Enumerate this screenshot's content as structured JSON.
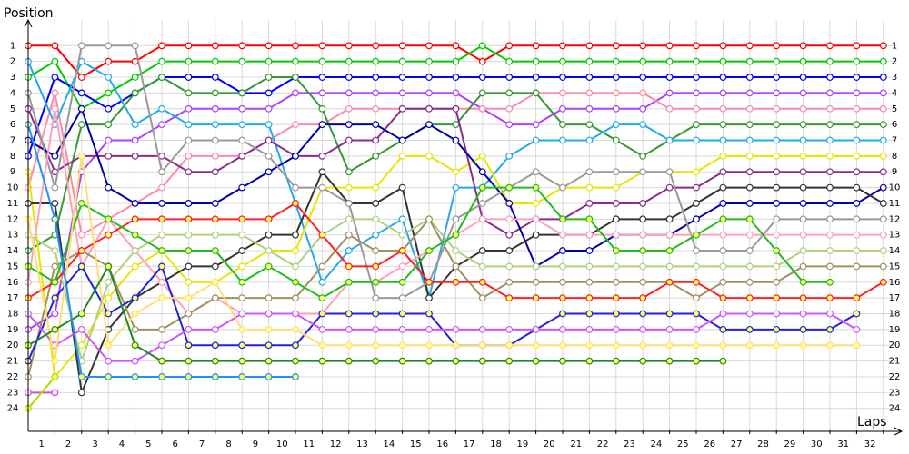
{
  "chart_data": {
    "type": "line",
    "x_label": "Laps",
    "y_label": "Position",
    "x": [
      0,
      1,
      2,
      3,
      4,
      5,
      6,
      7,
      8,
      9,
      10,
      11,
      12,
      13,
      14,
      15,
      16,
      17,
      18,
      19,
      20,
      21,
      22,
      23,
      24,
      25,
      26,
      27,
      28,
      29,
      30,
      31,
      32
    ],
    "xlim": [
      0,
      32.5
    ],
    "ylim": [
      -0.4,
      25.4
    ],
    "y_inverted": true,
    "grid": true,
    "xticks": [
      1,
      2,
      3,
      4,
      5,
      6,
      7,
      8,
      9,
      10,
      11,
      12,
      13,
      14,
      15,
      16,
      17,
      18,
      19,
      20,
      21,
      22,
      23,
      24,
      25,
      26,
      27,
      28,
      29,
      30,
      31,
      32
    ],
    "yticks": [
      1,
      2,
      3,
      4,
      5,
      6,
      7,
      8,
      9,
      10,
      11,
      12,
      13,
      14,
      15,
      16,
      17,
      18,
      19,
      20,
      21,
      22,
      23,
      24
    ],
    "series": [
      {
        "color": "#ff0000",
        "marker_fill": "#ffffff",
        "values": [
          1,
          1,
          3,
          2,
          2,
          1,
          1,
          1,
          1,
          1,
          1,
          1,
          1,
          1,
          1,
          1,
          1,
          2,
          1,
          1,
          1,
          1,
          1,
          1,
          1,
          1,
          1,
          1,
          1,
          1,
          1,
          1,
          1
        ]
      },
      {
        "color": "#00cc00",
        "marker_fill": "#ffffff",
        "values": [
          3,
          2,
          5,
          4,
          3,
          2,
          2,
          2,
          2,
          2,
          2,
          2,
          2,
          2,
          2,
          2,
          2,
          1,
          2,
          2,
          2,
          2,
          2,
          2,
          2,
          2,
          2,
          2,
          2,
          2,
          2,
          2,
          2
        ]
      },
      {
        "color": "#0000ff",
        "marker_fill": "#ffffff",
        "values": [
          8,
          3,
          4,
          5,
          4,
          3,
          3,
          3,
          4,
          4,
          3,
          3,
          3,
          3,
          3,
          3,
          3,
          3,
          3,
          3,
          3,
          3,
          3,
          3,
          3,
          3,
          3,
          3,
          3,
          3,
          3,
          3,
          3
        ]
      },
      {
        "color": "#b040ff",
        "marker_fill": "#ffffff",
        "values": [
          19,
          18,
          9,
          7,
          7,
          6,
          5,
          5,
          5,
          5,
          4,
          4,
          4,
          4,
          4,
          4,
          4,
          5,
          6,
          6,
          5,
          5,
          5,
          5,
          4,
          4,
          4,
          4,
          4,
          4,
          4,
          4,
          4
        ]
      },
      {
        "color": "#ff88aa",
        "marker_fill": "#ffffff",
        "values": [
          10,
          4,
          13,
          12,
          11,
          10,
          8,
          8,
          8,
          7,
          6,
          6,
          5,
          5,
          5,
          5,
          5,
          5,
          5,
          4,
          4,
          4,
          4,
          4,
          5,
          5,
          5,
          5,
          5,
          5,
          5,
          5,
          5
        ]
      },
      {
        "color": "#339933",
        "marker_fill": "#ffffff",
        "values": [
          14,
          13,
          6,
          6,
          4,
          3,
          4,
          4,
          4,
          3,
          3,
          5,
          9,
          8,
          7,
          6,
          6,
          4,
          4,
          4,
          6,
          6,
          7,
          8,
          7,
          6,
          6,
          6,
          6,
          6,
          6,
          6,
          6
        ]
      },
      {
        "color": "#22aaee",
        "marker_fill": "#ffffff",
        "values": [
          2,
          6,
          2,
          3,
          6,
          5,
          6,
          6,
          6,
          6,
          11,
          16,
          14,
          13,
          12,
          17,
          10,
          10,
          8,
          7,
          7,
          7,
          6,
          6,
          7,
          7,
          7,
          7,
          7,
          7,
          7,
          7,
          7
        ]
      },
      {
        "color": "#e6e600",
        "marker_fill": "#ffffff",
        "values": [
          9,
          22,
          20,
          17,
          15,
          14,
          16,
          16,
          15,
          14,
          14,
          10,
          10,
          10,
          8,
          8,
          9,
          8,
          11,
          11,
          10,
          10,
          10,
          9,
          9,
          9,
          8,
          8,
          8,
          8,
          8,
          8,
          8
        ]
      },
      {
        "color": "#8b2c8b",
        "marker_fill": "#ffffff",
        "values": [
          5,
          9,
          8,
          8,
          8,
          8,
          9,
          9,
          8,
          7,
          8,
          8,
          7,
          7,
          5,
          5,
          5,
          12,
          13,
          12,
          12,
          11,
          11,
          11,
          10,
          10,
          9,
          9,
          9,
          9,
          9,
          9,
          9
        ]
      },
      {
        "color": "#0000aa",
        "marker_fill": "#ffffff",
        "values": [
          7,
          8,
          5,
          10,
          11,
          11,
          11,
          11,
          10,
          9,
          8,
          6,
          6,
          6,
          7,
          6,
          7,
          9,
          11,
          15,
          14,
          14,
          13,
          13,
          13,
          12,
          11,
          11,
          11,
          11,
          11,
          11,
          10
        ]
      },
      {
        "color": "#333333",
        "marker_fill": "#ffffff",
        "values": [
          11,
          11,
          23,
          19,
          17,
          16,
          15,
          15,
          14,
          13,
          13,
          9,
          11,
          11,
          10,
          17,
          15,
          14,
          14,
          13,
          13,
          13,
          12,
          12,
          12,
          11,
          10,
          10,
          10,
          10,
          10,
          10,
          11
        ]
      },
      {
        "color": "#999999",
        "marker_fill": "#ffffff",
        "values": [
          4,
          10,
          1,
          1,
          1,
          9,
          7,
          7,
          7,
          8,
          10,
          10,
          11,
          17,
          17,
          16,
          12,
          11,
          10,
          9,
          10,
          9,
          9,
          9,
          9,
          14,
          14,
          14,
          12,
          12,
          12,
          12,
          12
        ]
      },
      {
        "color": "#ffa0b8",
        "marker_fill": "#ffffff",
        "values": [
          16,
          5,
          15,
          12,
          14,
          16,
          18,
          17,
          18,
          18,
          18,
          18,
          16,
          16,
          15,
          14,
          13,
          12,
          12,
          12,
          13,
          13,
          13,
          13,
          13,
          13,
          13,
          13,
          13,
          13,
          13,
          13,
          13
        ]
      },
      {
        "color": "#b0d080",
        "marker_fill": "#ffffff",
        "values": [
          13,
          14,
          21,
          16,
          14,
          13,
          13,
          13,
          13,
          14,
          15,
          13,
          12,
          12,
          13,
          12,
          14,
          15,
          15,
          15,
          15,
          15,
          15,
          15,
          15,
          15,
          15,
          15,
          15,
          14,
          14,
          14,
          14
        ]
      },
      {
        "color": "#a09060",
        "marker_fill": "#ffffff",
        "values": [
          22,
          15,
          14,
          15,
          19,
          19,
          18,
          17,
          17,
          17,
          17,
          15,
          13,
          14,
          14,
          12,
          15,
          17,
          16,
          16,
          16,
          16,
          16,
          16,
          16,
          17,
          16,
          16,
          16,
          15,
          15,
          15,
          15
        ]
      },
      {
        "color": "#ff2222",
        "marker_fill": "#ffff66",
        "values": [
          17,
          16,
          14,
          13,
          12,
          12,
          12,
          12,
          12,
          12,
          11,
          13,
          15,
          15,
          14,
          16,
          16,
          16,
          17,
          17,
          17,
          17,
          17,
          17,
          16,
          16,
          17,
          17,
          17,
          17,
          17,
          17,
          16
        ]
      },
      {
        "color": "#22bb22",
        "marker_fill": "#ffff66",
        "values": [
          15,
          16,
          11,
          12,
          13,
          14,
          14,
          14,
          16,
          15,
          16,
          17,
          16,
          16,
          16,
          14,
          13,
          10,
          10,
          10,
          12,
          12,
          14,
          14,
          14,
          13,
          12,
          12,
          14,
          16,
          16,
          null,
          null
        ]
      },
      {
        "color": "#2222dd",
        "marker_fill": "#ffff66",
        "values": [
          21,
          17,
          15,
          18,
          17,
          15,
          20,
          20,
          20,
          20,
          20,
          18,
          18,
          18,
          18,
          18,
          20,
          20,
          20,
          19,
          18,
          18,
          18,
          18,
          18,
          18,
          19,
          19,
          19,
          19,
          19,
          18,
          null
        ]
      },
      {
        "color": "#cc55ff",
        "marker_fill": "#ffffff",
        "values": [
          18,
          20,
          19,
          21,
          21,
          20,
          19,
          19,
          18,
          18,
          18,
          19,
          19,
          19,
          19,
          19,
          19,
          19,
          19,
          19,
          19,
          19,
          19,
          19,
          19,
          19,
          18,
          18,
          18,
          18,
          18,
          19,
          null
        ]
      },
      {
        "color": "#ffdd77",
        "marker_fill": "#ffff99",
        "values": [
          12,
          21,
          8,
          20,
          18,
          17,
          17,
          16,
          19,
          19,
          19,
          20,
          20,
          20,
          20,
          20,
          20,
          20,
          20,
          20,
          20,
          20,
          20,
          20,
          20,
          20,
          20,
          20,
          20,
          20,
          20,
          20,
          null
        ]
      },
      {
        "color": "#228822",
        "marker_fill": "#ffff66",
        "values": [
          20,
          19,
          18,
          15,
          20,
          21,
          21,
          21,
          21,
          21,
          21,
          21,
          21,
          21,
          21,
          21,
          21,
          21,
          21,
          21,
          21,
          21,
          21,
          21,
          21,
          21,
          21,
          null,
          null,
          null,
          null,
          null,
          null
        ]
      },
      {
        "color": "#1e90ff",
        "marker_fill": "#ffff66",
        "values": [
          6,
          12,
          22,
          22,
          22,
          22,
          22,
          22,
          22,
          22,
          22,
          null,
          null,
          null,
          null,
          null,
          null,
          null,
          null,
          null,
          null,
          null,
          null,
          null,
          null,
          null,
          null,
          null,
          null,
          null,
          null,
          null,
          null
        ]
      },
      {
        "color": "#dd44dd",
        "marker_fill": "#ffffff",
        "values": [
          23,
          23,
          null,
          null,
          null,
          null,
          null,
          null,
          null,
          null,
          null,
          null,
          null,
          null,
          null,
          null,
          null,
          null,
          null,
          null,
          null,
          null,
          null,
          null,
          null,
          null,
          null,
          null,
          null,
          null,
          null,
          null,
          null
        ]
      },
      {
        "color": "#aadd00",
        "marker_fill": "#ffff66",
        "values": [
          24,
          22,
          null,
          null,
          null,
          null,
          null,
          null,
          null,
          null,
          null,
          null,
          null,
          null,
          null,
          null,
          null,
          null,
          null,
          null,
          null,
          null,
          null,
          null,
          null,
          null,
          null,
          null,
          null,
          null,
          null,
          null,
          null
        ]
      }
    ]
  }
}
